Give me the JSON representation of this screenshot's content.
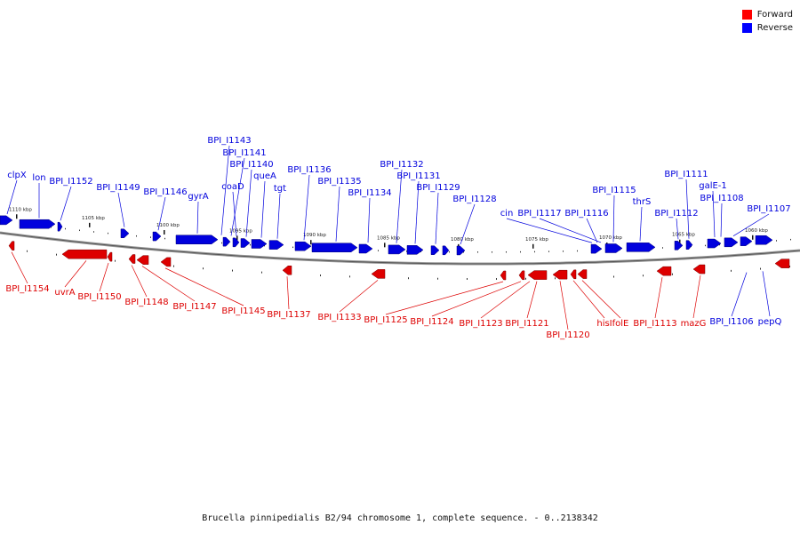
{
  "legend": {
    "forward_label": "Forward",
    "reverse_label": "Reverse",
    "forward_color": "#ff0000",
    "reverse_color": "#0000ff"
  },
  "footer": "Brucella pinnipedialis B2/94 chromosome 1, complete sequence. - 0..2138342",
  "colors": {
    "forward": "#dd0000",
    "reverse": "#0000dd",
    "backbone": "#888888"
  },
  "scale_labels": [
    "1110 kbp",
    "1105 kbp",
    "1100 kbp",
    "1095 kbp",
    "1090 kbp",
    "1085 kbp",
    "1080 kbp",
    "1075 kbp",
    "1070 kbp",
    "1065 kbp",
    "1060 kbp"
  ],
  "reverse_labels": [
    "clpX",
    "lon",
    "BPI_I1152",
    "BPI_I1149",
    "BPI_I1146",
    "gyrA",
    "BPI_I1143",
    "BPI_I1141",
    "coaD",
    "BPI_I1140",
    "queA",
    "tgt",
    "BPI_I1136",
    "BPI_I1135",
    "BPI_I1134",
    "BPI_I1132",
    "BPI_I1131",
    "BPI_I1129",
    "BPI_I1128",
    "cin",
    "BPI_I1117",
    "BPI_I1116",
    "BPI_I1115",
    "thrS",
    "BPI_I1112",
    "BPI_I1111",
    "galE-1",
    "BPI_I1108",
    "BPI_I1107",
    "BPI_I1106",
    "pepQ"
  ],
  "forward_labels": [
    "BPI_I1154",
    "uvrA",
    "BPI_I1150",
    "BPI_I1148",
    "BPI_I1147",
    "BPI_I1145",
    "BPI_I1137",
    "BPI_I1133",
    "BPI_I1125",
    "BPI_I1124",
    "BPI_I1123",
    "BPI_I1121",
    "BPI_I1120",
    "hisI",
    "folE",
    "BPI_I1113",
    "mazG"
  ]
}
